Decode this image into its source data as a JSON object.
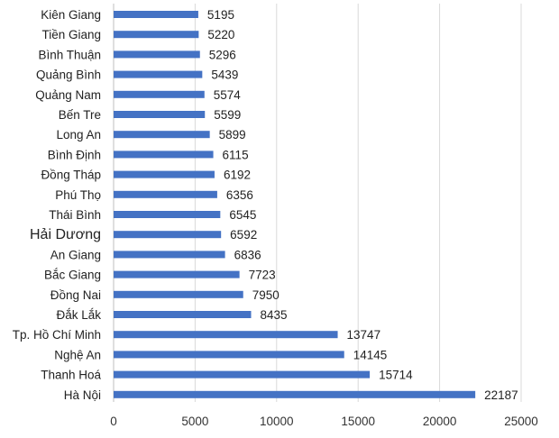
{
  "chart_data": {
    "type": "bar",
    "orientation": "horizontal",
    "title": "",
    "xlabel": "",
    "ylabel": "",
    "categories": [
      "Kiên Giang",
      "Tiền Giang",
      "Bình Thuận",
      "Quảng Bình",
      "Quảng Nam",
      "Bến Tre",
      "Long An",
      "Bình Định",
      "Đồng Tháp",
      "Phú Thọ",
      "Thái Bình",
      "Hải Dương",
      "An Giang",
      "Bắc Giang",
      "Đồng Nai",
      "Đắk Lắk",
      "Tp. Hồ Chí Minh",
      "Nghệ An",
      "Thanh Hoá",
      "Hà Nội"
    ],
    "values": [
      5195,
      5220,
      5296,
      5439,
      5574,
      5599,
      5899,
      6115,
      6192,
      6356,
      6545,
      6592,
      6836,
      7723,
      7950,
      8435,
      13747,
      14145,
      15714,
      22187
    ],
    "value_labels": [
      "5195",
      "5220",
      "5296",
      "5439",
      "5574",
      "5599",
      "5899",
      "6115",
      "6192",
      "6356",
      "6545",
      "6592",
      "6836",
      "7723",
      "7950",
      "8435",
      "13747",
      "14145",
      "15714",
      "22187"
    ],
    "xlim": [
      0,
      25000
    ],
    "x_ticks": [
      0,
      5000,
      10000,
      15000,
      20000,
      25000
    ],
    "x_tick_labels": [
      "0",
      "5000",
      "10000",
      "15000",
      "20000",
      "25000"
    ],
    "grid": true,
    "legend": "none",
    "bar_color": "#4472c4"
  }
}
